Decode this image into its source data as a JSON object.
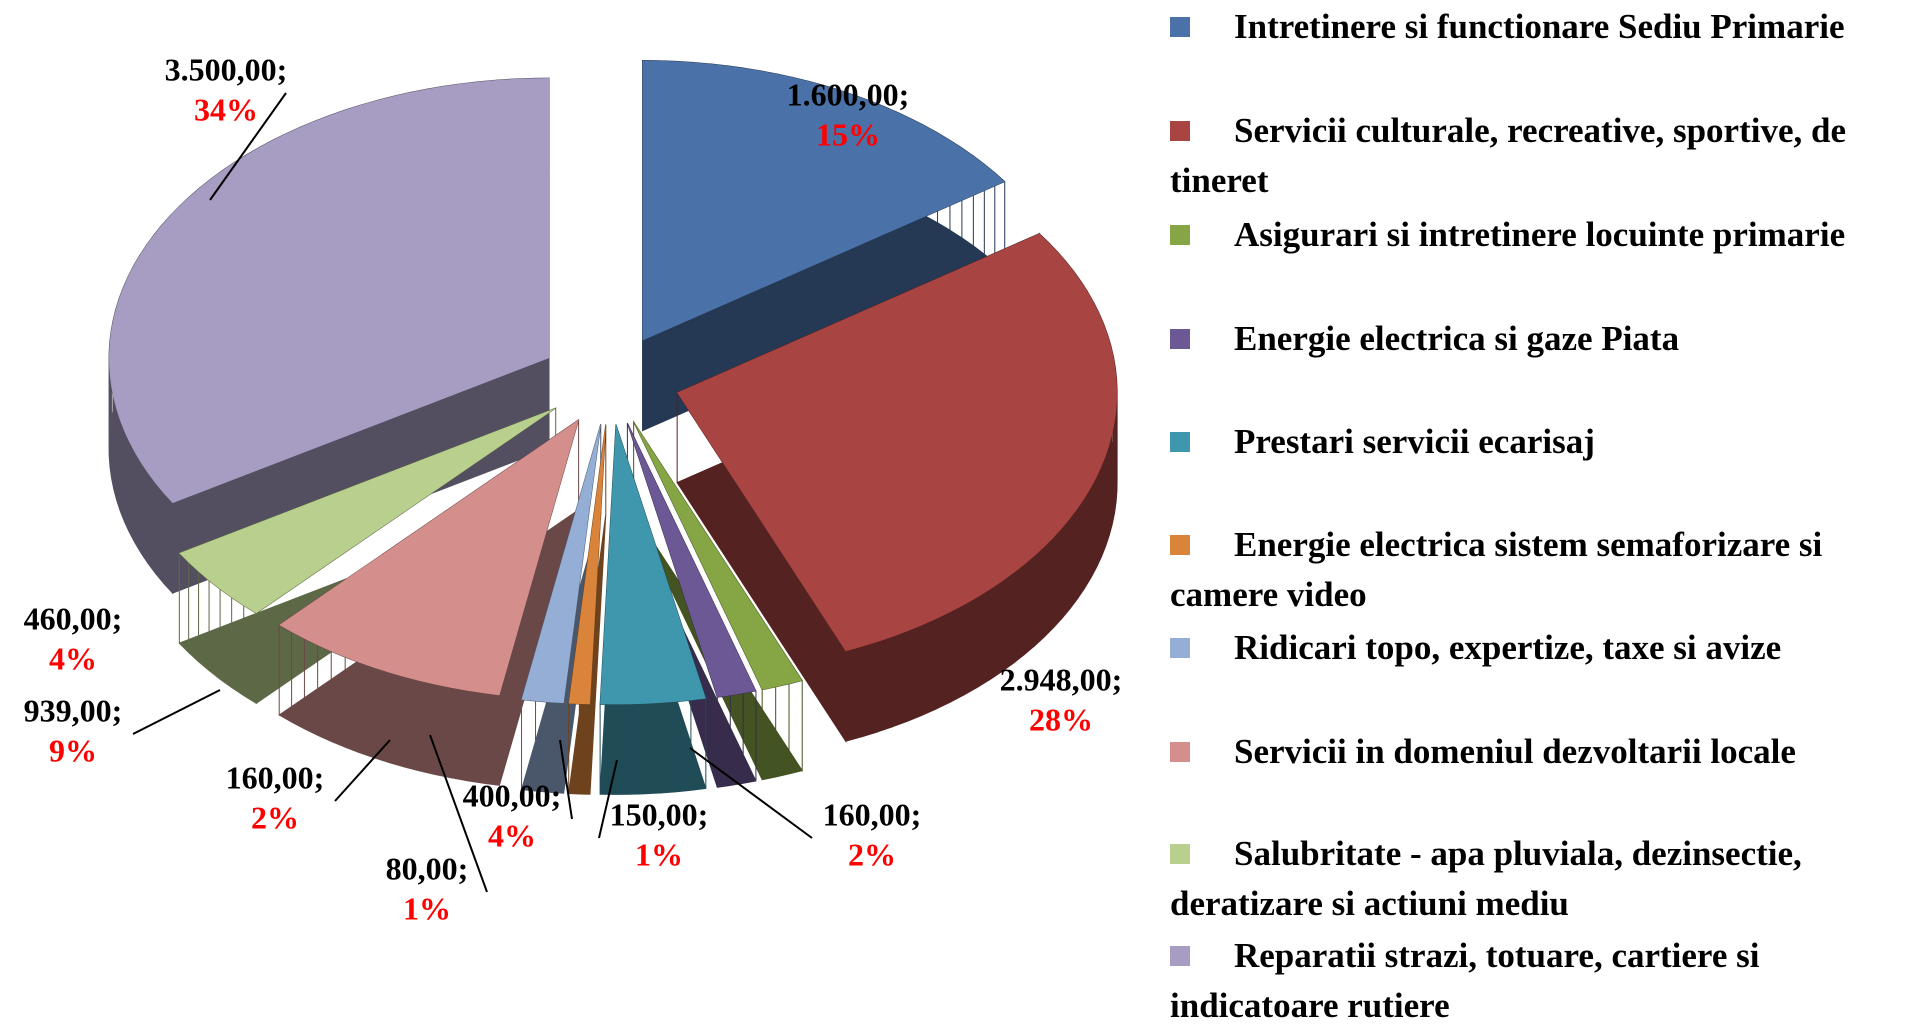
{
  "chart_data": {
    "type": "pie",
    "categories": [
      "Intretinere si functionare Sediu Primarie",
      "Servicii culturale, recreative, sportive, de tineret",
      "Asigurari si intretinere locuinte primarie",
      "Energie electrica si gaze Piata",
      "Prestari servicii ecarisaj",
      "Energie electrica sistem semaforizare si camere video",
      "Ridicari topo, expertize, taxe si avize",
      "Servicii in domeniul dezvoltarii locale",
      "Salubritate - apa pluviala, dezinsectie, deratizare si actiuni mediu",
      "Reparatii strazi, totuare, cartiere si indicatoare rutiere"
    ],
    "values": [
      1600,
      2948,
      160,
      150,
      400,
      80,
      160,
      939,
      460,
      3500
    ],
    "value_labels": [
      "1.600,00;",
      "2.948,00;",
      "160,00;",
      "150,00;",
      "400,00;",
      "80,00;",
      "160,00;",
      "939,00;",
      "460,00;",
      "3.500,00;"
    ],
    "percents": [
      15,
      28,
      2,
      1,
      4,
      1,
      2,
      9,
      4,
      34
    ],
    "percent_labels": [
      "15%",
      "28%",
      "2%",
      "1%",
      "4%",
      "1%",
      "2%",
      "9%",
      "4%",
      "34%"
    ],
    "colors": [
      "#4a72a8",
      "#a84442",
      "#86a544",
      "#6d5896",
      "#3f97ae",
      "#d9843a",
      "#94aed6",
      "#d48f8d",
      "#b9cf8e",
      "#a79cc1"
    ],
    "legend": "right"
  }
}
